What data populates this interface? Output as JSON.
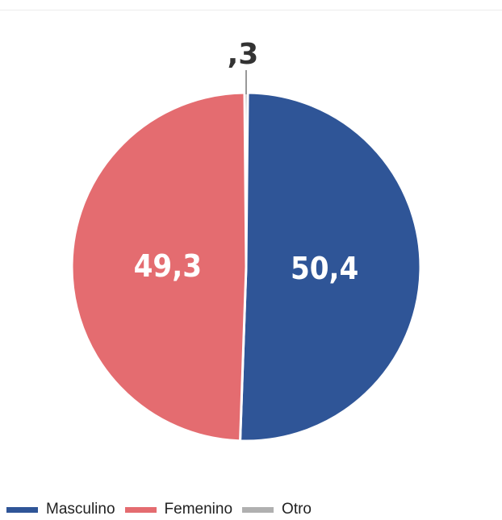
{
  "chart_data": {
    "type": "pie",
    "title": "",
    "slices": [
      {
        "label": "Masculino",
        "value": 50.4,
        "value_label": "50,4",
        "color": "#2f5597"
      },
      {
        "label": "Femenino",
        "value": 49.3,
        "value_label": "49,3",
        "color": "#e46c70"
      },
      {
        "label": "Otro",
        "value": 0.3,
        "value_label": ",3",
        "color": "#b0b0b0"
      }
    ],
    "legend_position": "bottom-left"
  }
}
